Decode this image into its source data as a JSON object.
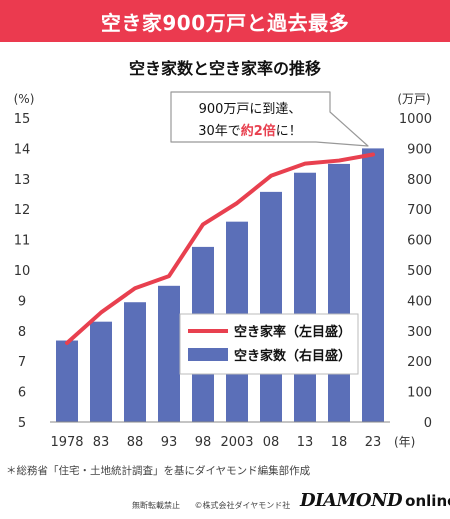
{
  "header": {
    "banner_title": "空き家900万戸と過去最多",
    "chart_title": "空き家数と空き家率の推移"
  },
  "annotation": {
    "line1": "900万戸に到達、",
    "line2_prefix": "30年で",
    "line2_highlight": "約2倍",
    "line2_suffix": "に！"
  },
  "footer": {
    "source": "＊総務省「住宅・土地統計調査」を基にダイヤモンド編集部作成",
    "notice": "無断転載禁止",
    "copyright": "©株式会社ダイヤモンド社",
    "brand_main": "DIAMOND",
    "brand_sub": "online"
  },
  "colors": {
    "banner": "#eb3a4f",
    "bar": "#5b6fb8",
    "line": "#e8404f",
    "highlight": "#e8404f"
  },
  "chart_data": {
    "type": "bar",
    "categories": [
      "1978",
      "83",
      "88",
      "93",
      "98",
      "2003",
      "08",
      "13",
      "18",
      "23"
    ],
    "x_unit": "(年)",
    "series": [
      {
        "name": "空き家数（右目盛）",
        "type": "bar",
        "axis": "right",
        "values": [
          268,
          330,
          394,
          448,
          576,
          659,
          757,
          820,
          849,
          900
        ]
      },
      {
        "name": "空き家率（左目盛）",
        "type": "line",
        "axis": "left",
        "values": [
          7.6,
          8.6,
          9.4,
          9.8,
          11.5,
          12.2,
          13.1,
          13.5,
          13.6,
          13.8
        ]
      }
    ],
    "y_left": {
      "unit": "(%)",
      "ylim": [
        5,
        15
      ],
      "ticks": [
        5,
        6,
        7,
        8,
        9,
        10,
        11,
        12,
        13,
        14,
        15
      ]
    },
    "y_right": {
      "unit": "(万戸)",
      "ylim": [
        0,
        1000
      ],
      "ticks": [
        0,
        100,
        200,
        300,
        400,
        500,
        600,
        700,
        800,
        900,
        1000
      ]
    },
    "grid": false,
    "legend_position": "lower-right-inside"
  }
}
